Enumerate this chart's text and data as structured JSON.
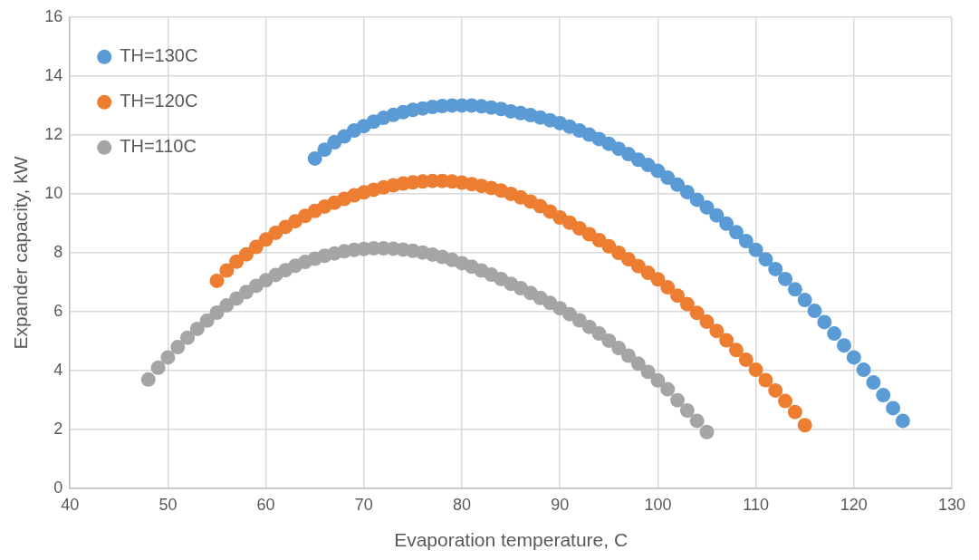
{
  "chart_data": {
    "type": "scatter",
    "xlabel": "Evaporation temperature, C",
    "ylabel": "Expander capacity, kW",
    "xlim": [
      40,
      130
    ],
    "xticks": [
      40,
      50,
      60,
      70,
      80,
      90,
      100,
      110,
      120,
      130
    ],
    "ylim": [
      0,
      16
    ],
    "yticks": [
      0,
      2,
      4,
      6,
      8,
      10,
      12,
      14,
      16
    ],
    "grid": true,
    "legend": "top left",
    "marker": "circle",
    "series": [
      {
        "name": "TH=130C",
        "color": "#5b9bd5",
        "x": [
          65,
          66,
          67,
          68,
          69,
          70,
          71,
          72,
          73,
          74,
          75,
          76,
          77,
          78,
          79,
          80,
          81,
          82,
          83,
          84,
          85,
          86,
          87,
          88,
          89,
          90,
          91,
          92,
          93,
          94,
          95,
          96,
          97,
          98,
          99,
          100,
          101,
          102,
          103,
          104,
          105,
          106,
          107,
          108,
          109,
          110,
          111,
          112,
          113,
          114,
          115,
          116,
          117,
          118,
          119,
          120,
          121,
          122,
          123,
          124,
          125
        ],
        "values": [
          11.2,
          11.5,
          11.75,
          11.95,
          12.15,
          12.3,
          12.45,
          12.58,
          12.68,
          12.77,
          12.85,
          12.9,
          12.95,
          12.98,
          13.0,
          13.0,
          13.0,
          12.97,
          12.93,
          12.88,
          12.8,
          12.74,
          12.67,
          12.59,
          12.5,
          12.4,
          12.28,
          12.15,
          12.01,
          11.86,
          11.7,
          11.53,
          11.35,
          11.16,
          10.98,
          10.78,
          10.55,
          10.31,
          10.06,
          9.8,
          9.54,
          9.27,
          8.99,
          8.7,
          8.4,
          8.1,
          7.78,
          7.45,
          7.11,
          6.76,
          6.4,
          6.03,
          5.65,
          5.26,
          4.86,
          4.45,
          4.03,
          3.6,
          3.17,
          2.73,
          2.3
        ]
      },
      {
        "name": "TH=120C",
        "color": "#ed7d31",
        "x": [
          55,
          56,
          57,
          58,
          59,
          60,
          61,
          62,
          63,
          64,
          65,
          66,
          67,
          68,
          69,
          70,
          71,
          72,
          73,
          74,
          75,
          76,
          77,
          78,
          79,
          80,
          81,
          82,
          83,
          84,
          85,
          86,
          87,
          88,
          89,
          90,
          91,
          92,
          93,
          94,
          95,
          96,
          97,
          98,
          99,
          100,
          101,
          102,
          103,
          104,
          105,
          106,
          107,
          108,
          109,
          110,
          111,
          112,
          113,
          114,
          115
        ],
        "values": [
          7.05,
          7.4,
          7.7,
          7.95,
          8.2,
          8.45,
          8.68,
          8.88,
          9.07,
          9.25,
          9.42,
          9.57,
          9.7,
          9.83,
          9.95,
          10.05,
          10.14,
          10.22,
          10.29,
          10.35,
          10.39,
          10.42,
          10.44,
          10.44,
          10.42,
          10.38,
          10.33,
          10.27,
          10.2,
          10.11,
          10.0,
          9.88,
          9.74,
          9.58,
          9.4,
          9.2,
          9.02,
          8.83,
          8.63,
          8.43,
          8.22,
          8.0,
          7.78,
          7.55,
          7.32,
          7.1,
          6.83,
          6.55,
          6.26,
          5.96,
          5.66,
          5.35,
          5.03,
          4.7,
          4.37,
          4.03,
          3.68,
          3.33,
          2.97,
          2.6,
          2.15
        ]
      },
      {
        "name": "TH=110C",
        "color": "#a5a5a5",
        "x": [
          48,
          49,
          50,
          51,
          52,
          53,
          54,
          55,
          56,
          57,
          58,
          59,
          60,
          61,
          62,
          63,
          64,
          65,
          66,
          67,
          68,
          69,
          70,
          71,
          72,
          73,
          74,
          75,
          76,
          77,
          78,
          79,
          80,
          81,
          82,
          83,
          84,
          85,
          86,
          87,
          88,
          89,
          90,
          91,
          92,
          93,
          94,
          95,
          96,
          97,
          98,
          99,
          100,
          101,
          102,
          103,
          104,
          105
        ],
        "values": [
          3.7,
          4.1,
          4.45,
          4.8,
          5.12,
          5.42,
          5.7,
          5.97,
          6.22,
          6.45,
          6.67,
          6.88,
          7.07,
          7.25,
          7.41,
          7.56,
          7.69,
          7.8,
          7.9,
          7.98,
          8.05,
          8.1,
          8.13,
          8.15,
          8.15,
          8.14,
          8.11,
          8.07,
          8.01,
          7.94,
          7.86,
          7.76,
          7.65,
          7.53,
          7.4,
          7.26,
          7.11,
          6.95,
          6.8,
          6.64,
          6.47,
          6.3,
          6.12,
          5.92,
          5.71,
          5.49,
          5.26,
          5.02,
          4.77,
          4.51,
          4.24,
          3.96,
          3.67,
          3.37,
          3.0,
          2.65,
          2.3,
          1.92
        ]
      }
    ]
  }
}
